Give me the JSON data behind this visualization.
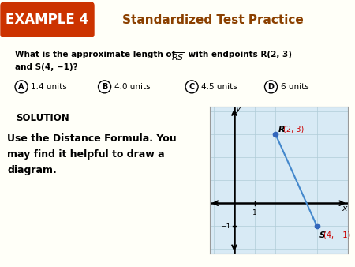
{
  "title": "Standardized Test Practice",
  "example_label": "EXAMPLE 4",
  "example_bg": "#cc3300",
  "header_bg": "#e8dfc0",
  "question_bg": "#f5efc8",
  "choices": [
    {
      "label": "A",
      "text": "1.4 units"
    },
    {
      "label": "B",
      "text": "4.0 units"
    },
    {
      "label": "C",
      "text": "4.5 units"
    },
    {
      "label": "D",
      "text": "6 units"
    }
  ],
  "solution_label": "SOLUTION",
  "solution_bg": "#66ddcc",
  "solution_text": "Use the Distance Formula. You\nmay find it helpful to draw a\ndiagram.",
  "graph_bg": "#d8eaf5",
  "grid_color": "#b0ccd8",
  "point_R": [
    2,
    3
  ],
  "point_S": [
    4,
    -1
  ],
  "line_color": "#4488cc",
  "point_color": "#3366bb",
  "axis_label_x": "x",
  "axis_label_y": "y",
  "label_color_coord": "#cc0000",
  "page_bg": "#fffff8",
  "bottom_bg": "#f0e8b0",
  "title_color": "#8B4000"
}
